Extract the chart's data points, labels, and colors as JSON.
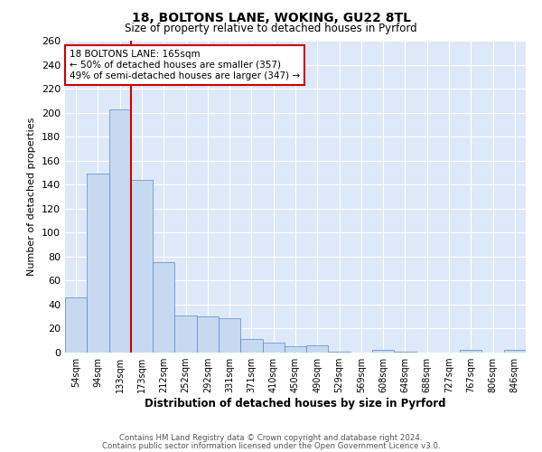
{
  "title1": "18, BOLTONS LANE, WOKING, GU22 8TL",
  "title2": "Size of property relative to detached houses in Pyrford",
  "xlabel": "Distribution of detached houses by size in Pyrford",
  "ylabel": "Number of detached properties",
  "bin_labels": [
    "54sqm",
    "94sqm",
    "133sqm",
    "173sqm",
    "212sqm",
    "252sqm",
    "292sqm",
    "331sqm",
    "371sqm",
    "410sqm",
    "450sqm",
    "490sqm",
    "529sqm",
    "569sqm",
    "608sqm",
    "648sqm",
    "688sqm",
    "727sqm",
    "767sqm",
    "806sqm",
    "846sqm"
  ],
  "bar_values": [
    46,
    149,
    203,
    144,
    75,
    31,
    30,
    29,
    11,
    8,
    5,
    6,
    1,
    0,
    2,
    1,
    0,
    0,
    2,
    0,
    2
  ],
  "bar_color": "#c6d9f1",
  "bar_edge_color": "#5a8ac6",
  "background_color": "#dde8f8",
  "grid_color": "#ffffff",
  "vline_color": "#cc0000",
  "annotation_text": "18 BOLTONS LANE: 165sqm\n← 50% of detached houses are smaller (357)\n49% of semi-detached houses are larger (347) →",
  "annotation_box_color": "#ffffff",
  "annotation_box_edge": "#cc0000",
  "ylim": [
    0,
    260
  ],
  "yticks": [
    0,
    20,
    40,
    60,
    80,
    100,
    120,
    140,
    160,
    180,
    200,
    220,
    240,
    260
  ],
  "footnote1": "Contains HM Land Registry data © Crown copyright and database right 2024.",
  "footnote2": "Contains public sector information licensed under the Open Government Licence v3.0."
}
